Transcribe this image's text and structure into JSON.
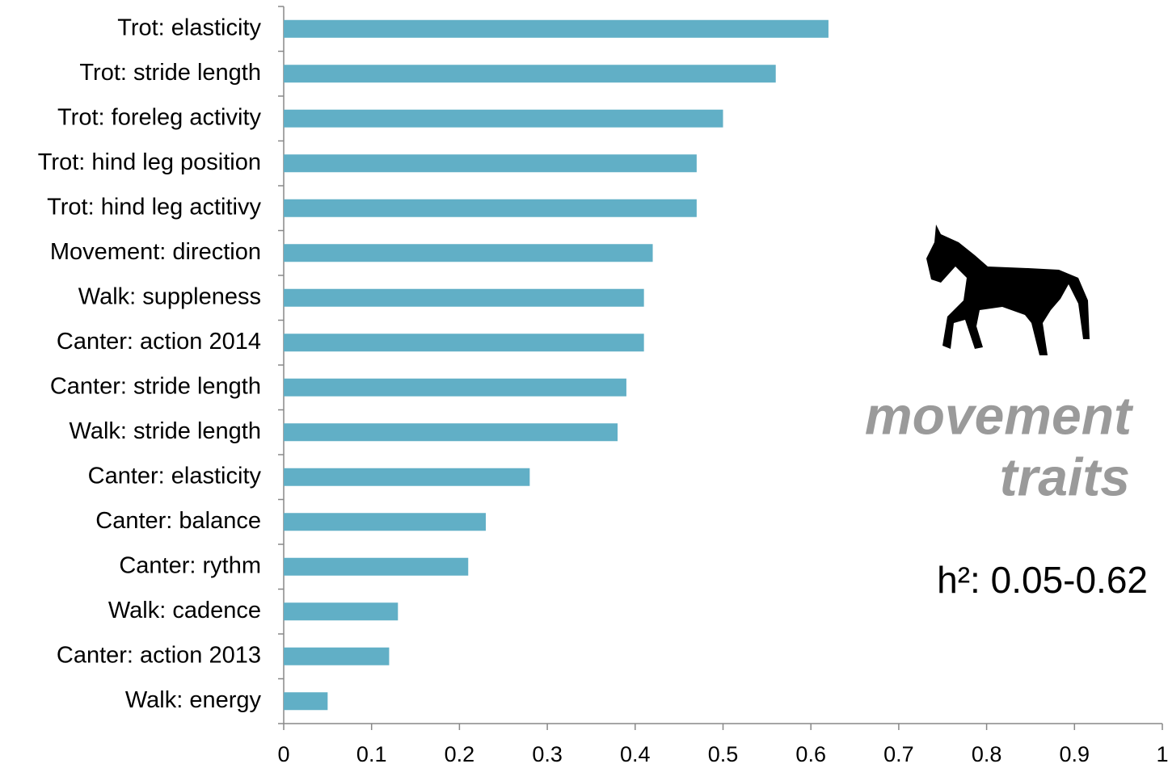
{
  "chart_data": {
    "type": "barh",
    "categories": [
      "Trot: elasticity",
      "Trot: stride length",
      "Trot: foreleg activity",
      "Trot: hind leg position",
      "Trot: hind leg actitivy",
      "Movement: direction",
      "Walk: suppleness",
      "Canter: action 2014",
      "Canter: stride length",
      "Walk: stride length",
      "Canter: elasticity",
      "Canter: balance",
      "Canter: rythm",
      "Walk: cadence",
      "Canter: action 2013",
      "Walk: energy"
    ],
    "values": [
      0.62,
      0.56,
      0.5,
      0.47,
      0.47,
      0.42,
      0.41,
      0.41,
      0.39,
      0.38,
      0.28,
      0.23,
      0.21,
      0.13,
      0.12,
      0.05
    ],
    "color": "#61afc6",
    "xlim": [
      0,
      1
    ],
    "xticks": [
      0,
      0.1,
      0.2,
      0.3,
      0.4,
      0.5,
      0.6,
      0.7,
      0.8,
      0.9,
      1
    ],
    "annotations": [
      "movement",
      "traits",
      "h²: 0.05-0.62"
    ]
  }
}
